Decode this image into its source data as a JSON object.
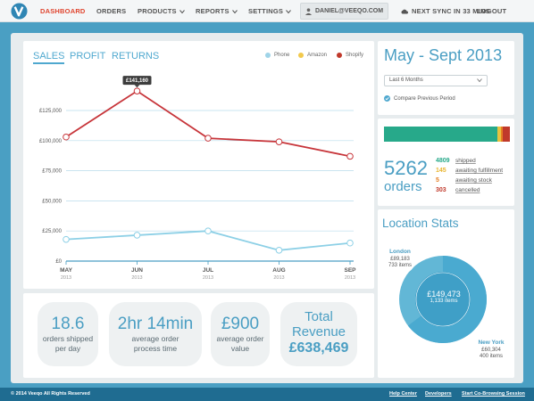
{
  "nav": {
    "items": [
      "DASHBOARD",
      "ORDERS",
      "PRODUCTS",
      "REPORTS",
      "SETTINGS"
    ],
    "user": "DANIEL@VEEQO.COM",
    "sync": "NEXT SYNC IN 33 MINS",
    "logout": "LOGOUT"
  },
  "sales": {
    "tabs": [
      "SALES",
      "PROFIT",
      "RETURNS"
    ],
    "legend": [
      {
        "name": "Phone",
        "color": "#9fd4e8"
      },
      {
        "name": "Amazon",
        "color": "#f2c94c"
      },
      {
        "name": "Shopify",
        "color": "#c0392b"
      }
    ],
    "tooltip": "£141,160"
  },
  "chart_data": {
    "type": "line",
    "x": [
      "MAY",
      "JUN",
      "JUL",
      "AUG",
      "SEP"
    ],
    "x_sub": [
      "2013",
      "2013",
      "2013",
      "2013",
      "2013"
    ],
    "yticks": [
      "£0",
      "£25,000",
      "£50,000",
      "£75,000",
      "£100,000",
      "£125,000"
    ],
    "ylim": [
      0,
      125000
    ],
    "series": [
      {
        "name": "Shopify",
        "color": "#c7353a",
        "values": [
          103000,
          141160,
          102000,
          99000,
          87000
        ]
      },
      {
        "name": "Phone",
        "color": "#8dd0e6",
        "values": [
          18000,
          21500,
          25000,
          9000,
          15000
        ]
      }
    ]
  },
  "stats": [
    {
      "big": "18.6",
      "small": "orders shipped\nper day"
    },
    {
      "big": "2hr 14min",
      "small": "average order\nprocess time"
    },
    {
      "big": "£900",
      "small": "average order\nvalue"
    },
    {
      "big": "Total\nRevenue",
      "value": "£638,469"
    }
  ],
  "period": {
    "title": "May - Sept 2013",
    "select": "Last 6 Months",
    "compare": "Compare Previous Period"
  },
  "orders": {
    "total": "5262",
    "label": "orders",
    "segments": [
      {
        "value": 4809,
        "label": "shipped",
        "color": "#27a98a"
      },
      {
        "value": 145,
        "label": "awaiting fulfillment",
        "color": "#e9c23f"
      },
      {
        "value": 5,
        "label": "awaiting stock",
        "color": "#e67e22"
      },
      {
        "value": 303,
        "label": "cancelled",
        "color": "#c0392b"
      }
    ]
  },
  "location": {
    "title": "Location Stats",
    "total": "£149,473",
    "total_items": "1,133 items",
    "london": {
      "name": "London",
      "value": "£89,183",
      "items": "733 items",
      "share": 0.647
    },
    "newyork": {
      "name": "New York",
      "value": "£60,304",
      "items": "400 items"
    }
  },
  "footer": {
    "copyright": "© 2014 Veeqo All Rights Reserved",
    "links": [
      "Help Center",
      "Developers",
      "Start Co-Browsing Session"
    ]
  }
}
